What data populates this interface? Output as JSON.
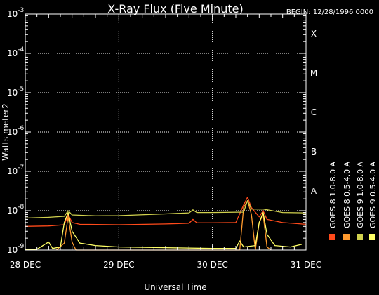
{
  "chart_data": {
    "type": "line",
    "title": "X-Ray Flux (Five Minute)",
    "begin_label": "BEGIN: 12/28/1996 0000",
    "xlabel": "Universal Time",
    "ylabel": "Watts meter2",
    "yscale": "log",
    "ylim": [
      1e-09,
      0.001
    ],
    "x_domain": [
      "1996-12-28 00:00",
      "1996-12-31 00:00"
    ],
    "x_ticks": [
      {
        "label": "28 DEC",
        "t": "1996-12-28 00:00"
      },
      {
        "label": "29 DEC",
        "t": "1996-12-29 00:00"
      },
      {
        "label": "30 DEC",
        "t": "1996-12-30 00:00"
      },
      {
        "label": "31 DEC",
        "t": "1996-12-31 00:00"
      }
    ],
    "y_ticks": [
      {
        "base": "10",
        "exp": "-3",
        "value": 0.001
      },
      {
        "base": "10",
        "exp": "-4",
        "value": 0.0001
      },
      {
        "base": "10",
        "exp": "-5",
        "value": 1e-05
      },
      {
        "base": "10",
        "exp": "-6",
        "value": 1e-06
      },
      {
        "base": "10",
        "exp": "-7",
        "value": 1e-07
      },
      {
        "base": "10",
        "exp": "-8",
        "value": 1e-08
      },
      {
        "base": "10",
        "exp": "-9",
        "value": 1e-09
      }
    ],
    "flare_classes": [
      {
        "label": "X",
        "value": 0.0001
      },
      {
        "label": "M",
        "value": 1e-05
      },
      {
        "label": "C",
        "value": 1e-06
      },
      {
        "label": "B",
        "value": 1e-07
      },
      {
        "label": "A",
        "value": 1e-08
      }
    ],
    "grid": "dotted horizontal at each decade; dotted vertical at day boundaries",
    "legend_position": "right, vertical",
    "series": [
      {
        "name": "GOES 8 1.0-8.0 A",
        "color": "#ff4a1a",
        "points": [
          [
            "1996-12-28 00:00",
            4e-09
          ],
          [
            "1996-12-28 06:00",
            4.1e-09
          ],
          [
            "1996-12-28 10:00",
            4.4e-09
          ],
          [
            "1996-12-28 11:00",
            8e-09
          ],
          [
            "1996-12-28 12:00",
            5e-09
          ],
          [
            "1996-12-28 14:00",
            4.5e-09
          ],
          [
            "1996-12-29 00:00",
            4.4e-09
          ],
          [
            "1996-12-29 12:00",
            4.6e-09
          ],
          [
            "1996-12-29 18:00",
            4.8e-09
          ],
          [
            "1996-12-29 19:00",
            6e-09
          ],
          [
            "1996-12-29 20:00",
            4.9e-09
          ],
          [
            "1996-12-30 00:00",
            4.9e-09
          ],
          [
            "1996-12-30 06:00",
            5e-09
          ],
          [
            "1996-12-30 08:00",
            1.4e-08
          ],
          [
            "1996-12-30 09:00",
            2.2e-08
          ],
          [
            "1996-12-30 10:00",
            1.2e-08
          ],
          [
            "1996-12-30 12:00",
            7e-09
          ],
          [
            "1996-12-30 13:00",
            1e-08
          ],
          [
            "1996-12-30 14:00",
            6e-09
          ],
          [
            "1996-12-30 18:00",
            5e-09
          ],
          [
            "1996-12-31 00:00",
            4.5e-09
          ]
        ]
      },
      {
        "name": "GOES 8 0.5-4.0 A",
        "color": "#ff9a2e",
        "points": [
          [
            "1996-12-28 08:00",
            1e-09
          ],
          [
            "1996-12-28 10:00",
            1.5e-09
          ],
          [
            "1996-12-28 11:00",
            7e-09
          ],
          [
            "1996-12-28 12:00",
            1.6e-09
          ],
          [
            "1996-12-28 13:00",
            1e-09
          ],
          [
            "1996-12-30 07:00",
            1e-09
          ],
          [
            "1996-12-30 08:00",
            1.2e-08
          ],
          [
            "1996-12-30 09:00",
            1.8e-08
          ],
          [
            "1996-12-30 10:00",
            8e-09
          ],
          [
            "1996-12-30 11:00",
            1e-09
          ],
          [
            "1996-12-30 12:00",
            5e-09
          ],
          [
            "1996-12-30 13:00",
            8e-09
          ],
          [
            "1996-12-30 14:00",
            1.2e-09
          ],
          [
            "1996-12-30 15:00",
            1e-09
          ]
        ]
      },
      {
        "name": "GOES 9 1.0-8.0 A",
        "color": "#d2d24e",
        "points": [
          [
            "1996-12-28 00:00",
            6.5e-09
          ],
          [
            "1996-12-28 06:00",
            6.8e-09
          ],
          [
            "1996-12-28 10:00",
            7.2e-09
          ],
          [
            "1996-12-28 11:00",
            1e-08
          ],
          [
            "1996-12-28 12:00",
            7.8e-09
          ],
          [
            "1996-12-28 18:00",
            7.4e-09
          ],
          [
            "1996-12-29 00:00",
            7.5e-09
          ],
          [
            "1996-12-29 12:00",
            8.3e-09
          ],
          [
            "1996-12-29 18:00",
            8.8e-09
          ],
          [
            "1996-12-29 19:00",
            1.05e-08
          ],
          [
            "1996-12-29 20:00",
            9e-09
          ],
          [
            "1996-12-30 00:00",
            9e-09
          ],
          [
            "1996-12-30 08:00",
            9.2e-09
          ],
          [
            "1996-12-30 09:00",
            1.8e-08
          ],
          [
            "1996-12-30 10:00",
            1.1e-08
          ],
          [
            "1996-12-30 13:00",
            1.1e-08
          ],
          [
            "1996-12-30 18:00",
            9e-09
          ],
          [
            "1996-12-31 00:00",
            8.8e-09
          ]
        ]
      },
      {
        "name": "GOES 9 0.5-4.0 A",
        "color": "#ffff66",
        "points": [
          [
            "1996-12-28 00:00",
            1.05e-09
          ],
          [
            "1996-12-28 03:00",
            1.05e-09
          ],
          [
            "1996-12-28 06:00",
            1.6e-09
          ],
          [
            "1996-12-28 07:00",
            1.1e-09
          ],
          [
            "1996-12-28 09:00",
            1.2e-09
          ],
          [
            "1996-12-28 10:00",
            5e-09
          ],
          [
            "1996-12-28 11:00",
            9e-09
          ],
          [
            "1996-12-28 12:00",
            3e-09
          ],
          [
            "1996-12-28 14:00",
            1.5e-09
          ],
          [
            "1996-12-28 18:00",
            1.3e-09
          ],
          [
            "1996-12-29 00:00",
            1.2e-09
          ],
          [
            "1996-12-29 12:00",
            1.15e-09
          ],
          [
            "1996-12-30 00:00",
            1.1e-09
          ],
          [
            "1996-12-30 06:00",
            1.1e-09
          ],
          [
            "1996-12-30 07:00",
            1.7e-09
          ],
          [
            "1996-12-30 08:00",
            1.2e-09
          ],
          [
            "1996-12-30 11:00",
            1.3e-09
          ],
          [
            "1996-12-30 12:00",
            5e-09
          ],
          [
            "1996-12-30 13:00",
            9e-09
          ],
          [
            "1996-12-30 14:00",
            2.5e-09
          ],
          [
            "1996-12-30 16:00",
            1.3e-09
          ],
          [
            "1996-12-30 20:00",
            1.2e-09
          ],
          [
            "1996-12-30 23:00",
            1.4e-09
          ]
        ]
      }
    ]
  }
}
